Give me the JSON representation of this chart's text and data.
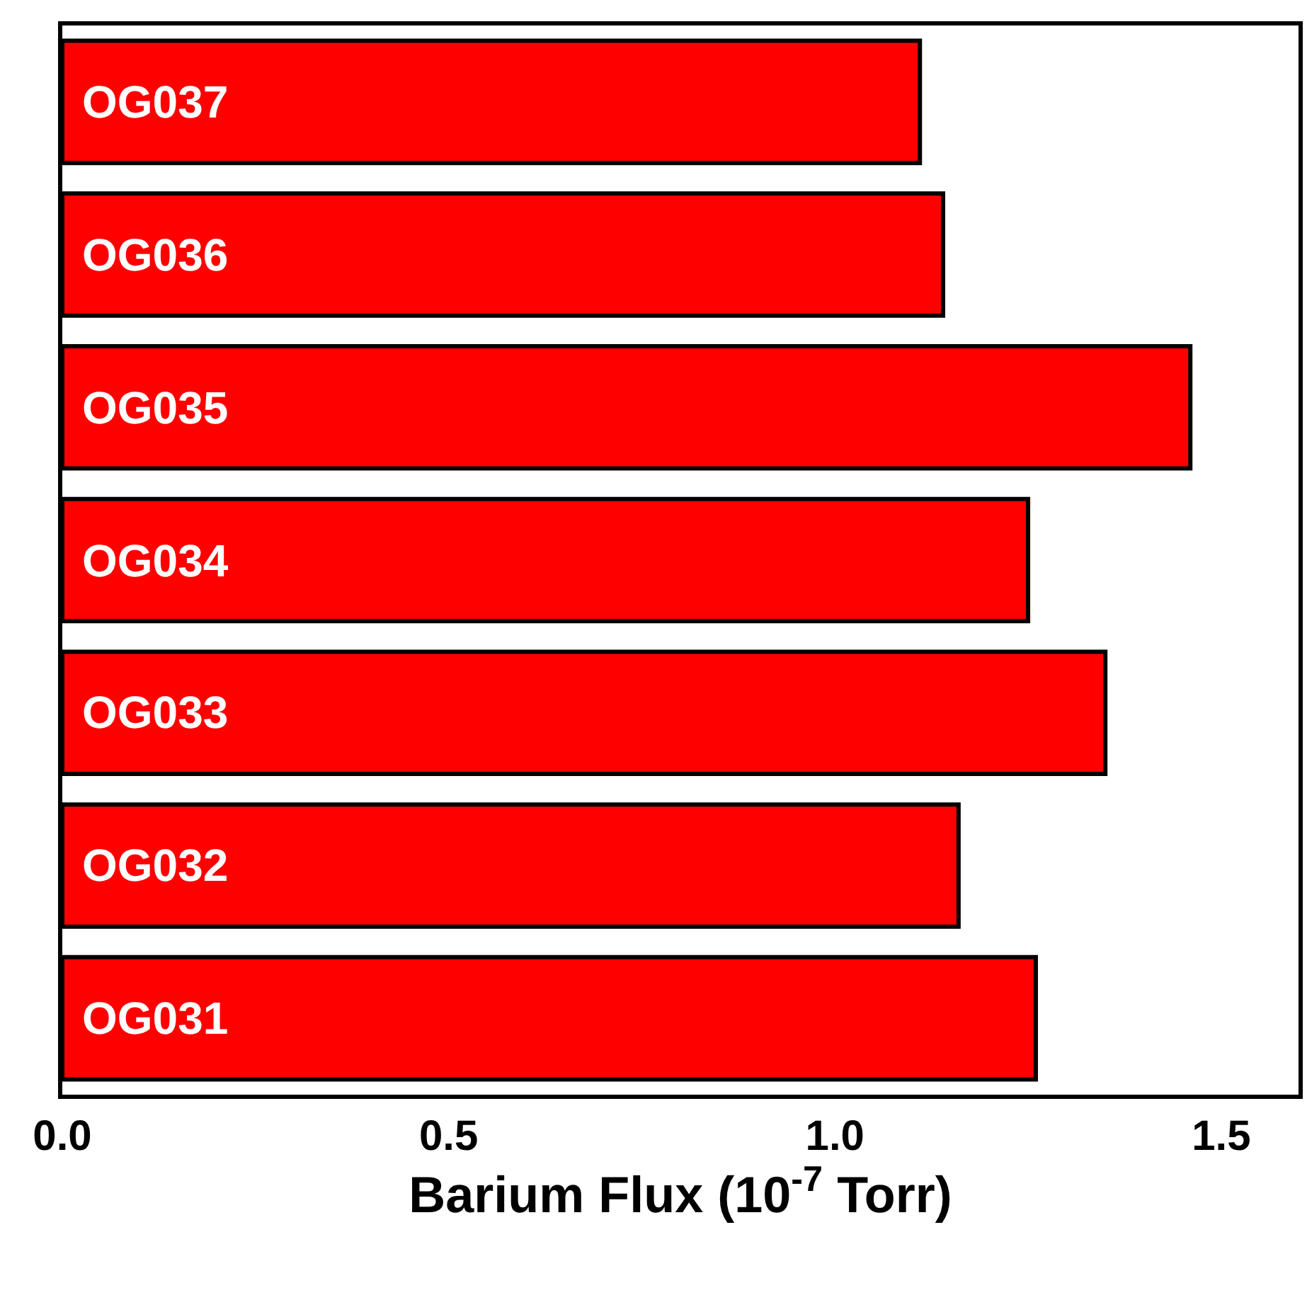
{
  "chart_data": {
    "type": "bar",
    "orientation": "horizontal",
    "xlabel": "Barium Flux (10$^{-7}$ Torr)",
    "categories": [
      "OG037",
      "OG036",
      "OG035",
      "OG034",
      "OG033",
      "OG032",
      "OG031"
    ],
    "values": [
      1.11,
      1.14,
      1.46,
      1.25,
      1.35,
      1.16,
      1.26
    ],
    "color": "#ff0000",
    "xlim": [
      0,
      1.6
    ],
    "xticks": [
      {
        "value": 0,
        "label": "0.0"
      },
      {
        "value": 0.5,
        "label": "0.5"
      },
      {
        "value": 1,
        "label": "1.0"
      },
      {
        "value": 1.5,
        "label": "1.5"
      }
    ],
    "legend": false
  }
}
